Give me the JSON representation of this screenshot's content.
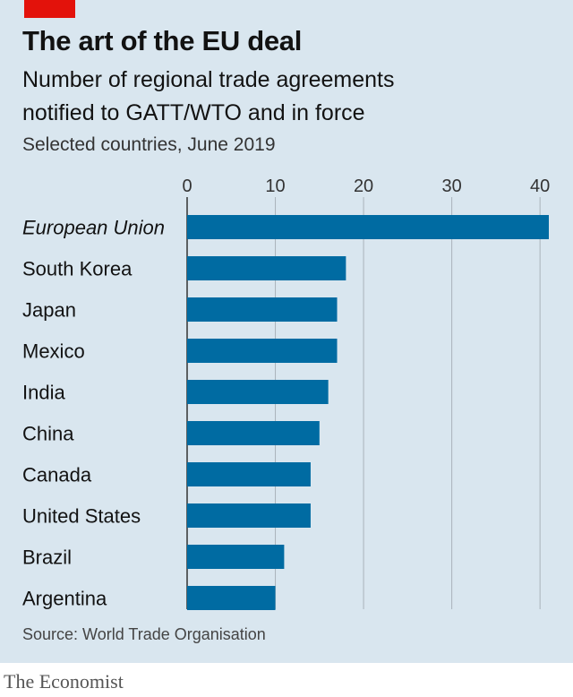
{
  "header": {
    "title": "The art of the EU deal",
    "subtitle_line1": "Number of regional trade agreements",
    "subtitle_line2": "notified to GATT/WTO and in force",
    "note": "Selected countries, June 2019"
  },
  "footer": {
    "source": "Source: World Trade Organisation",
    "brand": "The Economist"
  },
  "colors": {
    "background": "#d9e6ef",
    "bar": "#006ba2",
    "gridline": "#a9b3bb",
    "accent": "#e3120b"
  },
  "chart_data": {
    "type": "bar",
    "orientation": "horizontal",
    "categories": [
      "European Union",
      "South Korea",
      "Japan",
      "Mexico",
      "India",
      "China",
      "Canada",
      "United States",
      "Brazil",
      "Argentina"
    ],
    "values": [
      41,
      18,
      17,
      17,
      16,
      15,
      14,
      14,
      11,
      10
    ],
    "highlighted_category": "European Union",
    "xlim": [
      0,
      41
    ],
    "xticks": [
      0,
      10,
      20,
      30,
      40
    ],
    "xaxis_position": "top",
    "grid": true
  }
}
